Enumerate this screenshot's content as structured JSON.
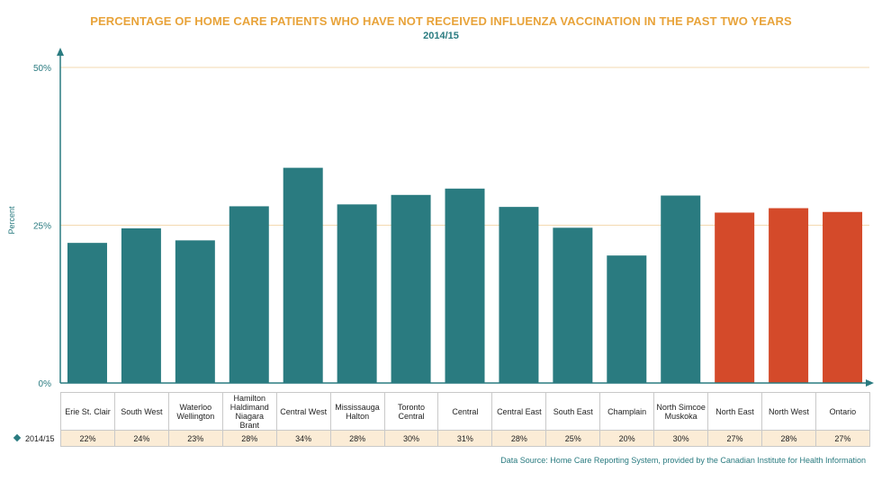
{
  "chart_data": {
    "type": "bar",
    "title": "PERCENTAGE OF HOME CARE PATIENTS WHO HAVE NOT RECEIVED INFLUENZA VACCINATION IN THE PAST TWO YEARS",
    "subtitle": "2014/15",
    "ylabel": "Percent",
    "xlabel": "",
    "ylim": [
      0,
      50
    ],
    "yticks": [
      0,
      25,
      50
    ],
    "ytick_labels": [
      "0%",
      "25%",
      "50%"
    ],
    "grid": true,
    "categories": [
      "Erie St. Clair",
      "South West",
      "Waterloo Wellington",
      "Hamilton Haldimand Niagara Brant",
      "Central West",
      "Mississauga Halton",
      "Toronto Central",
      "Central",
      "Central East",
      "South East",
      "Champlain",
      "North Simcoe Muskoka",
      "North East",
      "North West",
      "Ontario"
    ],
    "series": [
      {
        "name": "2014/15",
        "values": [
          22.2,
          24.5,
          22.6,
          28.0,
          34.1,
          28.3,
          29.8,
          30.8,
          27.9,
          24.6,
          20.2,
          29.7,
          27.0,
          27.7,
          27.1
        ],
        "labels": [
          "22%",
          "24%",
          "23%",
          "28%",
          "34%",
          "28%",
          "30%",
          "31%",
          "28%",
          "25%",
          "20%",
          "30%",
          "27%",
          "28%",
          "27%"
        ]
      }
    ],
    "colors": {
      "default": "#2a7b80",
      "highlight": "#d44a2a",
      "highlight_categories": [
        "North East",
        "North West",
        "Ontario"
      ],
      "grid": "#f3d9b0",
      "axis": "#2a7b80"
    },
    "legend": "table-bottom"
  },
  "source": "Data Source: Home Care Reporting System, provided by the Canadian Institute for Health Information"
}
